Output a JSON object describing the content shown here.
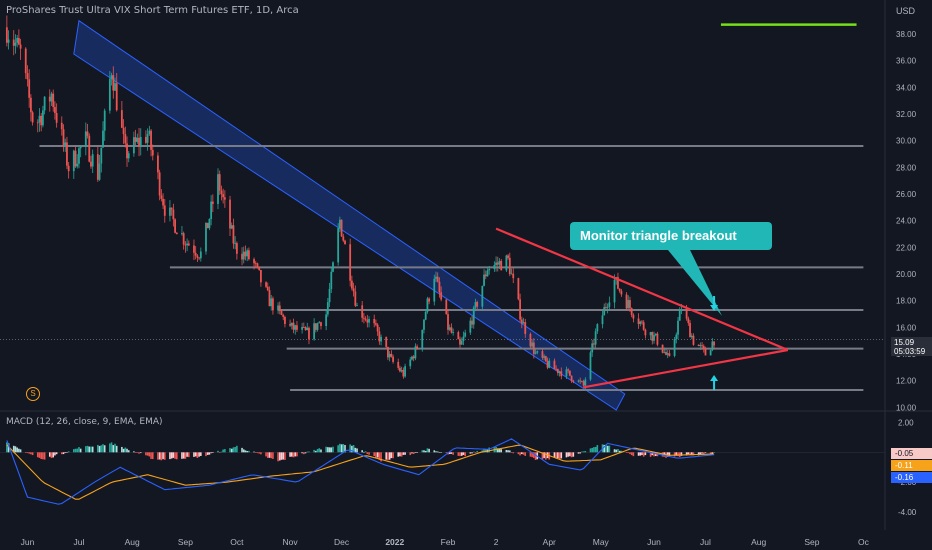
{
  "header": {
    "title": "ProShares Trust Ultra VIX Short Term Futures ETF, 1D, Arca",
    "currency": "USD"
  },
  "annotation": {
    "callout": "Monitor triangle breakout",
    "badge": "S"
  },
  "price_tag": {
    "price": "15.09",
    "countdown": "05:03:59"
  },
  "macd": {
    "label": "MACD (12, 26, close, 9, EMA, EMA)",
    "values": [
      "-0.05",
      "-0.11",
      "-0.16"
    ],
    "value_colors": [
      "#f7c9c7",
      "#f7a21b",
      "#2962ff"
    ]
  },
  "colors": {
    "up": "#26a69a",
    "down": "#ef5350",
    "channel": "#2962ff",
    "triangle": "#f23645",
    "level": "#787b86",
    "callout": "#22b7b7",
    "arrow": "#22d3e4",
    "green_line": "#76e018"
  },
  "chart_data": [
    {
      "type": "candlestick",
      "title": "ProShares Trust Ultra VIX Short Term Futures ETF, 1D, Arca",
      "x_ticks": [
        "Jun",
        "Jul",
        "Aug",
        "Sep",
        "Oct",
        "Nov",
        "Dec",
        "2022",
        "Feb",
        "2",
        "Apr",
        "May",
        "Jun",
        "Jul",
        "Aug",
        "Sep",
        "Oc"
      ],
      "y_ticks": [
        "38.00",
        "36.00",
        "34.00",
        "32.00",
        "30.00",
        "28.00",
        "26.00",
        "24.00",
        "22.00",
        "20.00",
        "18.00",
        "16.00",
        "14.00",
        "12.00",
        "10.00"
      ],
      "ylim": [
        9.8,
        39.5
      ],
      "grid": false,
      "last_price": 15.09,
      "price_anchors": [
        [
          "2021-05-20",
          38.5
        ],
        [
          "2021-05-28",
          36.5
        ],
        [
          "2021-06-05",
          31.0
        ],
        [
          "2021-06-15",
          33.5
        ],
        [
          "2021-06-25",
          28.0
        ],
        [
          "2021-07-05",
          30.0
        ],
        [
          "2021-07-12",
          27.5
        ],
        [
          "2021-07-20",
          35.5
        ],
        [
          "2021-07-28",
          29.0
        ],
        [
          "2021-08-10",
          30.5
        ],
        [
          "2021-08-20",
          25.0
        ],
        [
          "2021-09-01",
          22.5
        ],
        [
          "2021-09-10",
          21.5
        ],
        [
          "2021-09-20",
          27.0
        ],
        [
          "2021-09-30",
          22.0
        ],
        [
          "2021-10-10",
          21.0
        ],
        [
          "2021-10-20",
          18.0
        ],
        [
          "2021-11-01",
          16.0
        ],
        [
          "2021-11-12",
          15.5
        ],
        [
          "2021-11-22",
          17.0
        ],
        [
          "2021-11-30",
          24.0
        ],
        [
          "2021-12-10",
          17.5
        ],
        [
          "2021-12-20",
          16.0
        ],
        [
          "2021-12-30",
          13.5
        ],
        [
          "2022-01-06",
          12.5
        ],
        [
          "2022-01-14",
          14.5
        ],
        [
          "2022-01-24",
          20.0
        ],
        [
          "2022-02-01",
          16.0
        ],
        [
          "2022-02-08",
          14.5
        ],
        [
          "2022-02-16",
          17.0
        ],
        [
          "2022-02-24",
          20.5
        ],
        [
          "2022-03-08",
          21.0
        ],
        [
          "2022-03-16",
          16.5
        ],
        [
          "2022-03-24",
          14.0
        ],
        [
          "2022-04-02",
          13.0
        ],
        [
          "2022-04-12",
          12.5
        ],
        [
          "2022-04-21",
          11.6
        ],
        [
          "2022-04-28",
          15.5
        ],
        [
          "2022-05-09",
          19.5
        ],
        [
          "2022-05-18",
          17.5
        ],
        [
          "2022-05-26",
          16.0
        ],
        [
          "2022-06-03",
          15.0
        ],
        [
          "2022-06-10",
          13.5
        ],
        [
          "2022-06-17",
          17.5
        ],
        [
          "2022-06-24",
          15.0
        ],
        [
          "2022-07-01",
          14.0
        ],
        [
          "2022-07-06",
          15.09
        ]
      ],
      "horizontal_levels": [
        {
          "value": 29.6,
          "from": "2021-06-08",
          "to": "2022-10-01"
        },
        {
          "value": 20.5,
          "from": "2021-08-23",
          "to": "2022-10-01"
        },
        {
          "value": 17.3,
          "from": "2021-10-25",
          "to": "2022-10-01"
        },
        {
          "value": 14.4,
          "from": "2021-10-30",
          "to": "2022-10-01"
        },
        {
          "value": 11.3,
          "from": "2021-11-01",
          "to": "2022-10-01"
        }
      ],
      "descending_channel": {
        "upper": [
          [
            "2021-07-01",
            39.0
          ],
          [
            "2022-05-15",
            11.0
          ]
        ],
        "lower": [
          [
            "2021-06-28",
            36.5
          ],
          [
            "2022-05-10",
            9.8
          ]
        ]
      },
      "triangle": {
        "upper": [
          [
            "2022-03-01",
            23.4
          ],
          [
            "2022-08-18",
            14.3
          ]
        ],
        "lower": [
          [
            "2022-04-21",
            11.5
          ],
          [
            "2022-08-18",
            14.3
          ]
        ]
      },
      "reference_line": {
        "value": 38.7,
        "from": "2022-07-10",
        "to": "2022-09-27"
      }
    },
    {
      "type": "bar+line",
      "title": "MACD (12, 26, close, 9, EMA, EMA)",
      "y_ticks": [
        "2.00",
        "0.00",
        "-2.00",
        "-4.00"
      ],
      "ylim": [
        -5.2,
        2.7
      ],
      "histogram_anchors": [
        [
          "2021-05-20",
          0.6
        ],
        [
          "2021-06-10",
          -0.5
        ],
        [
          "2021-07-01",
          0.3
        ],
        [
          "2021-07-20",
          0.6
        ],
        [
          "2021-08-15",
          -0.5
        ],
        [
          "2021-09-10",
          -0.3
        ],
        [
          "2021-10-01",
          0.4
        ],
        [
          "2021-10-25",
          -0.6
        ],
        [
          "2021-11-20",
          0.3
        ],
        [
          "2021-12-05",
          0.6
        ],
        [
          "2021-12-25",
          -0.6
        ],
        [
          "2022-01-20",
          0.2
        ],
        [
          "2022-02-08",
          -0.3
        ],
        [
          "2022-02-28",
          0.4
        ],
        [
          "2022-03-25",
          -0.5
        ],
        [
          "2022-04-15",
          -0.3
        ],
        [
          "2022-05-01",
          0.6
        ],
        [
          "2022-05-20",
          -0.2
        ],
        [
          "2022-06-10",
          -0.3
        ],
        [
          "2022-07-06",
          -0.05
        ]
      ],
      "macd_anchors": [
        [
          "2021-05-20",
          0.8
        ],
        [
          "2021-06-01",
          -3.0
        ],
        [
          "2021-06-20",
          -3.5
        ],
        [
          "2021-07-10",
          -2.0
        ],
        [
          "2021-07-25",
          -1.0
        ],
        [
          "2021-08-20",
          -2.5
        ],
        [
          "2021-09-15",
          -2.2
        ],
        [
          "2021-10-10",
          -1.5
        ],
        [
          "2021-11-05",
          -2.0
        ],
        [
          "2021-12-05",
          0.2
        ],
        [
          "2021-12-25",
          -0.8
        ],
        [
          "2022-01-15",
          -1.5
        ],
        [
          "2022-02-05",
          0.3
        ],
        [
          "2022-02-25",
          0.2
        ],
        [
          "2022-03-10",
          0.9
        ],
        [
          "2022-04-01",
          -0.8
        ],
        [
          "2022-04-20",
          -1.2
        ],
        [
          "2022-05-05",
          0.6
        ],
        [
          "2022-05-25",
          0.1
        ],
        [
          "2022-06-15",
          -0.4
        ],
        [
          "2022-07-06",
          -0.16
        ]
      ],
      "signal_anchors": [
        [
          "2021-05-20",
          0.5
        ],
        [
          "2021-06-10",
          -2.0
        ],
        [
          "2021-06-30",
          -3.2
        ],
        [
          "2021-07-20",
          -2.0
        ],
        [
          "2021-08-10",
          -1.5
        ],
        [
          "2021-09-01",
          -2.2
        ],
        [
          "2021-09-25",
          -2.0
        ],
        [
          "2021-10-20",
          -1.6
        ],
        [
          "2021-11-15",
          -1.3
        ],
        [
          "2021-12-15",
          -0.2
        ],
        [
          "2022-01-10",
          -1.0
        ],
        [
          "2022-01-30",
          -0.8
        ],
        [
          "2022-02-20",
          0.0
        ],
        [
          "2022-03-15",
          0.5
        ],
        [
          "2022-04-10",
          -0.6
        ],
        [
          "2022-05-01",
          -0.5
        ],
        [
          "2022-05-20",
          0.3
        ],
        [
          "2022-06-10",
          -0.2
        ],
        [
          "2022-07-06",
          -0.11
        ]
      ]
    }
  ]
}
